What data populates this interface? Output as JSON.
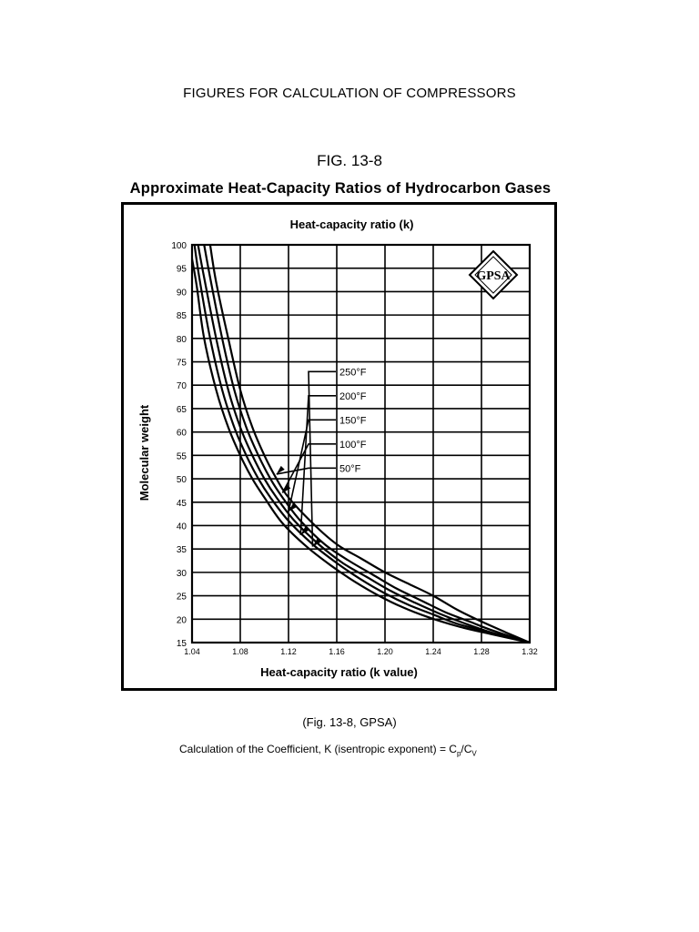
{
  "document": {
    "heading": "FIGURES FOR CALCULATION OF COMPRESSORS",
    "figure_number": "FIG. 13-8",
    "figure_title": "Approximate Heat-Capacity Ratios of Hydrocarbon Gases",
    "caption": "(Fig. 13-8, GPSA)",
    "calc_text": "Calculation of the Coefficient, K (isentropic exponent) = C",
    "calc_sub1": "p",
    "calc_mid": "/C",
    "calc_sub2": "V"
  },
  "logo": {
    "text": "GPSA"
  },
  "chart_data": {
    "type": "line",
    "title": "Heat-capacity ratio (k)",
    "xlabel": "Heat-capacity ratio (k value)",
    "ylabel": "Molecular weight",
    "xlim": [
      1.04,
      1.32
    ],
    "ylim": [
      15,
      100
    ],
    "x_ticks": [
      1.04,
      1.08,
      1.12,
      1.16,
      1.2,
      1.24,
      1.28,
      1.32
    ],
    "x_tick_labels": [
      "1.04",
      "1.08",
      "1.12",
      "1.16",
      "1.20",
      "1.24",
      "1.28",
      "1.32"
    ],
    "y_ticks": [
      15,
      20,
      25,
      30,
      35,
      40,
      45,
      50,
      55,
      60,
      65,
      70,
      75,
      80,
      85,
      90,
      95,
      100
    ],
    "y_tick_labels": [
      "15",
      "20",
      "25",
      "30",
      "35",
      "40",
      "45",
      "50",
      "55",
      "60",
      "65",
      "70",
      "75",
      "80",
      "85",
      "90",
      "95",
      "100"
    ],
    "grid": true,
    "series": [
      {
        "name": "50°F",
        "points": [
          [
            1.055,
            100
          ],
          [
            1.06,
            92
          ],
          [
            1.07,
            80
          ],
          [
            1.08,
            69
          ],
          [
            1.09,
            61
          ],
          [
            1.1,
            55
          ],
          [
            1.11,
            50
          ],
          [
            1.12,
            46
          ],
          [
            1.14,
            40.5
          ],
          [
            1.16,
            36
          ],
          [
            1.18,
            33
          ],
          [
            1.2,
            30
          ],
          [
            1.22,
            27.5
          ],
          [
            1.24,
            25
          ],
          [
            1.26,
            22
          ],
          [
            1.28,
            19.5
          ],
          [
            1.3,
            17.2
          ],
          [
            1.32,
            15
          ]
        ]
      },
      {
        "name": "100°F",
        "points": [
          [
            1.05,
            100
          ],
          [
            1.055,
            93
          ],
          [
            1.065,
            80
          ],
          [
            1.075,
            69
          ],
          [
            1.085,
            61
          ],
          [
            1.095,
            55
          ],
          [
            1.105,
            50
          ],
          [
            1.115,
            46
          ],
          [
            1.13,
            41
          ],
          [
            1.15,
            36
          ],
          [
            1.17,
            32.5
          ],
          [
            1.19,
            29.5
          ],
          [
            1.21,
            26.5
          ],
          [
            1.23,
            24
          ],
          [
            1.25,
            21.5
          ],
          [
            1.27,
            19.5
          ],
          [
            1.29,
            17.5
          ],
          [
            1.32,
            15
          ]
        ]
      },
      {
        "name": "150°F",
        "points": [
          [
            1.045,
            100
          ],
          [
            1.05,
            93
          ],
          [
            1.06,
            80
          ],
          [
            1.07,
            69
          ],
          [
            1.08,
            61
          ],
          [
            1.09,
            55
          ],
          [
            1.1,
            50
          ],
          [
            1.11,
            46
          ],
          [
            1.125,
            41
          ],
          [
            1.145,
            36
          ],
          [
            1.165,
            32
          ],
          [
            1.185,
            29
          ],
          [
            1.205,
            26
          ],
          [
            1.225,
            23.5
          ],
          [
            1.245,
            21.2
          ],
          [
            1.265,
            19.2
          ],
          [
            1.29,
            17
          ],
          [
            1.32,
            15
          ]
        ]
      },
      {
        "name": "200°F",
        "points": [
          [
            1.042,
            100
          ],
          [
            1.046,
            93
          ],
          [
            1.055,
            80
          ],
          [
            1.065,
            69
          ],
          [
            1.075,
            61
          ],
          [
            1.085,
            55
          ],
          [
            1.095,
            50
          ],
          [
            1.105,
            46
          ],
          [
            1.12,
            41
          ],
          [
            1.14,
            36
          ],
          [
            1.16,
            32
          ],
          [
            1.18,
            28.5
          ],
          [
            1.2,
            25.5
          ],
          [
            1.22,
            23
          ],
          [
            1.24,
            21
          ],
          [
            1.26,
            19
          ],
          [
            1.29,
            17
          ],
          [
            1.32,
            15
          ]
        ]
      },
      {
        "name": "250°F",
        "points": [
          [
            1.04,
            97
          ],
          [
            1.044,
            91
          ],
          [
            1.05,
            80
          ],
          [
            1.06,
            69
          ],
          [
            1.07,
            61
          ],
          [
            1.08,
            55
          ],
          [
            1.09,
            50
          ],
          [
            1.1,
            46
          ],
          [
            1.115,
            40.5
          ],
          [
            1.135,
            35.5
          ],
          [
            1.155,
            31.5
          ],
          [
            1.175,
            28
          ],
          [
            1.195,
            25
          ],
          [
            1.215,
            22.5
          ],
          [
            1.235,
            20.5
          ],
          [
            1.26,
            18.5
          ],
          [
            1.29,
            16.7
          ],
          [
            1.32,
            15
          ]
        ]
      }
    ],
    "annotations": [
      {
        "text": "50°F",
        "series": "50°F",
        "at": [
          1.11,
          51
        ]
      },
      {
        "text": "100°F",
        "series": "100°F",
        "at": [
          1.115,
          47
        ]
      },
      {
        "text": "150°F",
        "series": "150°F",
        "at": [
          1.12,
          43
        ]
      },
      {
        "text": "200°F",
        "series": "200°F",
        "at": [
          1.13,
          38
        ]
      },
      {
        "text": "250°F",
        "series": "250°F",
        "at": [
          1.14,
          35.5
        ]
      }
    ]
  }
}
